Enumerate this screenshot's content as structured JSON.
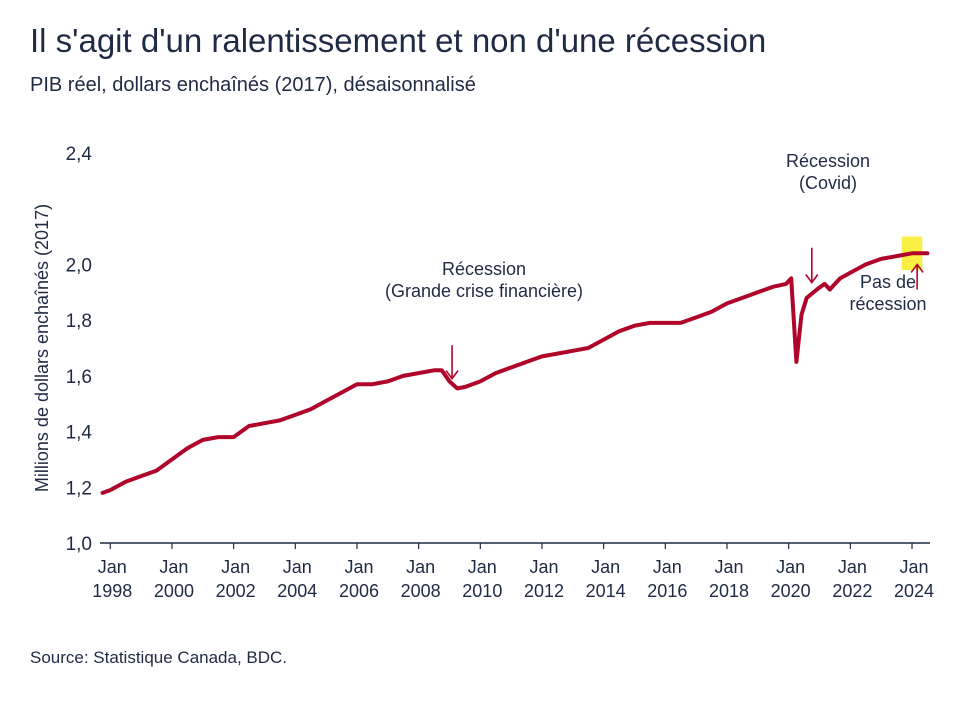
{
  "colors": {
    "line": "#b0052b",
    "highlight": "#f7f043",
    "axis": "#1f2a44",
    "text": "#1f2a44"
  },
  "chart_data": {
    "type": "line",
    "title": "Il s'agit d'un ralentissement et non d'une récession",
    "subtitle": "PIB réel, dollars enchaînés (2017), désaisonnalisé",
    "xlabel": "",
    "ylabel": "Millions de dollars enchaînés (2017)",
    "xlim": [
      "1997-09",
      "2024-08"
    ],
    "ylim": [
      1.0,
      2.4
    ],
    "yticks": [
      "1,0",
      "1,2",
      "1,4",
      "1,6",
      "1,8",
      "2,0",
      "2,4"
    ],
    "ytick_values": [
      1.0,
      1.2,
      1.4,
      1.6,
      1.8,
      2.0,
      2.4
    ],
    "xticks": [
      {
        "date": "1998-01",
        "line1": "Jan",
        "line2": "1998"
      },
      {
        "date": "2000-01",
        "line1": "Jan",
        "line2": "2000"
      },
      {
        "date": "2002-01",
        "line1": "Jan",
        "line2": "2002"
      },
      {
        "date": "2004-01",
        "line1": "Jan",
        "line2": "2004"
      },
      {
        "date": "2006-01",
        "line1": "Jan",
        "line2": "2006"
      },
      {
        "date": "2008-01",
        "line1": "Jan",
        "line2": "2008"
      },
      {
        "date": "2010-01",
        "line1": "Jan",
        "line2": "2010"
      },
      {
        "date": "2012-01",
        "line1": "Jan",
        "line2": "2012"
      },
      {
        "date": "2014-01",
        "line1": "Jan",
        "line2": "2014"
      },
      {
        "date": "2016-01",
        "line1": "Jan",
        "line2": "2016"
      },
      {
        "date": "2018-01",
        "line1": "Jan",
        "line2": "2018"
      },
      {
        "date": "2020-01",
        "line1": "Jan",
        "line2": "2020"
      },
      {
        "date": "2022-01",
        "line1": "Jan",
        "line2": "2022"
      },
      {
        "date": "2024-01",
        "line1": "Jan",
        "line2": "2024"
      }
    ],
    "grid": false,
    "legend": "none",
    "series": [
      {
        "x": [
          "1997-10",
          "1998-01",
          "1998-07",
          "1999-01",
          "1999-07",
          "2000-01",
          "2000-07",
          "2001-01",
          "2001-07",
          "2002-01",
          "2002-07",
          "2003-01",
          "2003-07",
          "2004-01",
          "2004-07",
          "2005-01",
          "2005-07",
          "2006-01",
          "2006-07",
          "2007-01",
          "2007-07",
          "2008-01",
          "2008-07",
          "2008-10",
          "2009-01",
          "2009-04",
          "2009-07",
          "2010-01",
          "2010-07",
          "2011-01",
          "2011-07",
          "2012-01",
          "2012-07",
          "2013-01",
          "2013-07",
          "2014-01",
          "2014-07",
          "2015-01",
          "2015-07",
          "2016-01",
          "2016-07",
          "2017-01",
          "2017-07",
          "2018-01",
          "2018-07",
          "2019-01",
          "2019-07",
          "2019-12",
          "2020-02",
          "2020-04",
          "2020-06",
          "2020-08",
          "2020-12",
          "2021-03",
          "2021-05",
          "2021-09",
          "2022-01",
          "2022-07",
          "2023-01",
          "2023-07",
          "2024-01",
          "2024-07"
        ],
        "values": [
          1.18,
          1.19,
          1.22,
          1.24,
          1.26,
          1.3,
          1.34,
          1.37,
          1.38,
          1.38,
          1.42,
          1.43,
          1.44,
          1.46,
          1.48,
          1.51,
          1.54,
          1.57,
          1.57,
          1.58,
          1.6,
          1.61,
          1.62,
          1.62,
          1.58,
          1.555,
          1.56,
          1.58,
          1.61,
          1.63,
          1.65,
          1.67,
          1.68,
          1.69,
          1.7,
          1.73,
          1.76,
          1.78,
          1.79,
          1.79,
          1.79,
          1.81,
          1.83,
          1.86,
          1.88,
          1.9,
          1.92,
          1.93,
          1.95,
          1.65,
          1.82,
          1.88,
          1.91,
          1.93,
          1.91,
          1.95,
          1.97,
          2.0,
          2.02,
          2.03,
          2.04,
          2.04
        ]
      }
    ],
    "highlight": {
      "x_from": "2023-09",
      "x_to": "2024-05",
      "y_from": 1.98,
      "y_to": 2.1
    },
    "annotations": [
      {
        "id": "gfc",
        "lines": [
          "Récession",
          "(Grande crise financière)"
        ],
        "arrow_to": {
          "x": "2009-02",
          "y": 1.59
        },
        "arrow_from": {
          "x": "2009-02",
          "y": 1.71
        }
      },
      {
        "id": "covid",
        "lines": [
          "Récession",
          "(Covid)"
        ],
        "arrow_to": {
          "x": "2020-10",
          "y": 1.935
        },
        "arrow_from": {
          "x": "2020-10",
          "y": 2.06
        }
      },
      {
        "id": "no-recession",
        "lines": [
          "Pas de",
          "récession"
        ],
        "arrow_to": {
          "x": "2024-03",
          "y": 2.0
        },
        "arrow_from": {
          "x": "2024-03",
          "y": 1.91
        }
      }
    ]
  },
  "source": "Source: Statistique Canada, BDC."
}
